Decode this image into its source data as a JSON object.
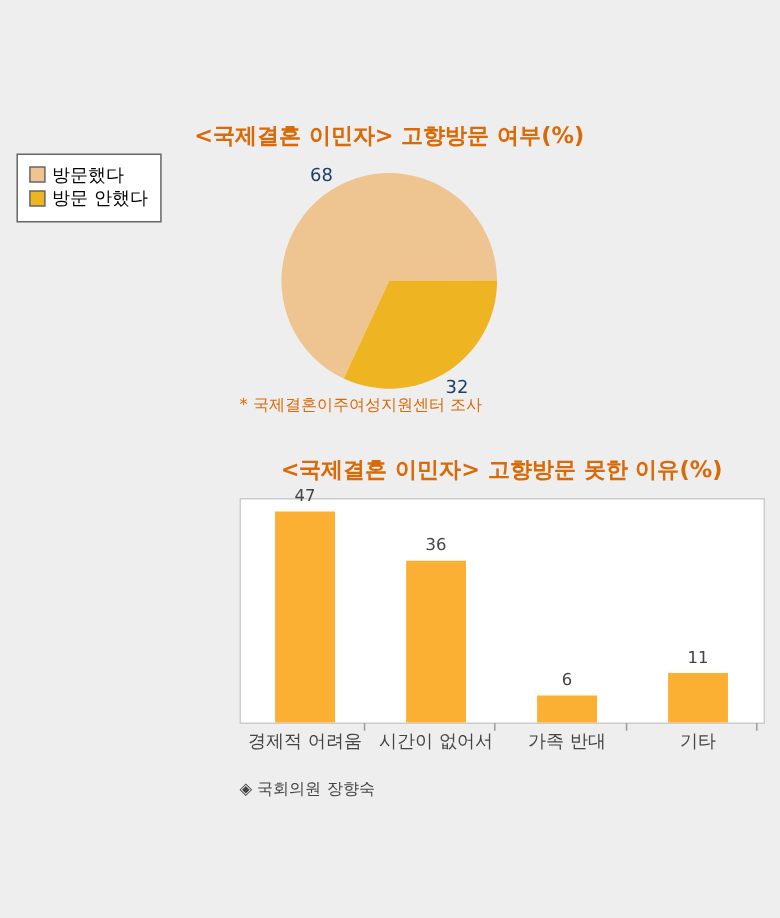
{
  "chart_data": [
    {
      "type": "pie",
      "title": "<국제결혼 이민자>  고향방문 여부(%)",
      "categories": [
        "방문했다",
        "방문 안했다"
      ],
      "values": [
        68,
        32
      ],
      "colors": [
        "#eec591",
        "#eeb422"
      ],
      "data_labels": true,
      "legend": "left",
      "annotations": [
        "* 국제결혼이주여성지원센터 조사"
      ]
    },
    {
      "type": "bar",
      "title": "<국제결혼 이민자> 고향방문 못한 이유(%)",
      "categories": [
        "경제적 어려움",
        "시간이 없어서",
        "가족 반대",
        "기타"
      ],
      "values": [
        47,
        36,
        6,
        11
      ],
      "color": "#fbb034",
      "data_labels": true,
      "annotations": [
        "◈ 국회의원 장향숙"
      ]
    }
  ]
}
